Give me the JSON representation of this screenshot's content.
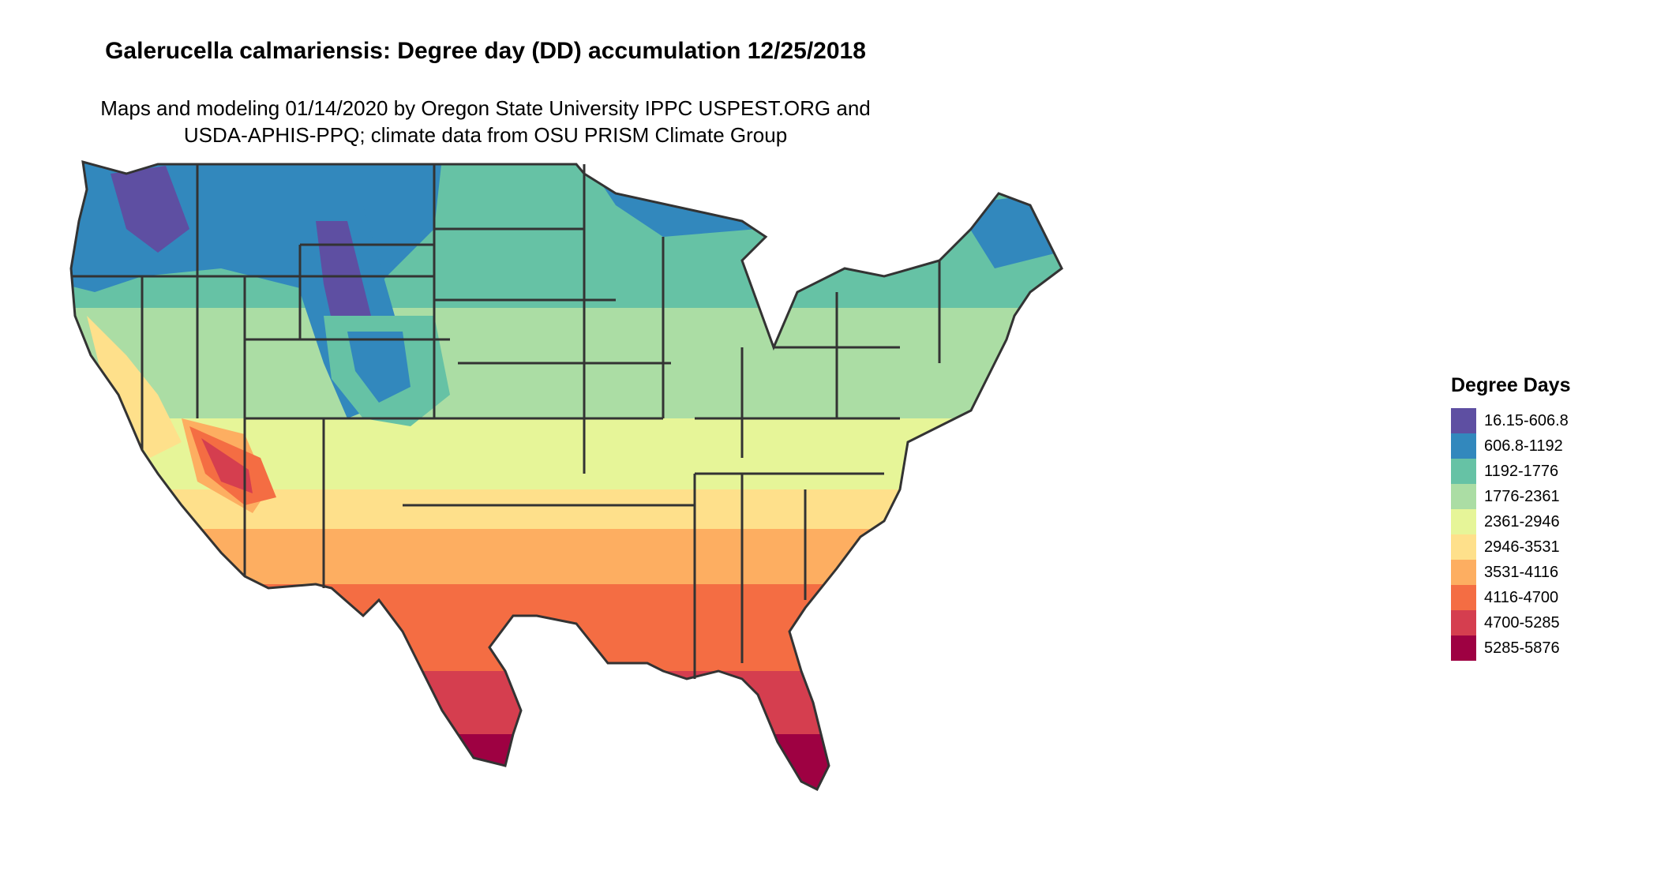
{
  "map": {
    "title": "Galerucella calmariensis: Degree day (DD) accumulation 12/25/2018",
    "subtitle_line1": "Maps and modeling 01/14/2020 by Oregon State University IPPC USPEST.ORG and",
    "subtitle_line2": "USDA-APHIS-PPQ; climate data from OSU PRISM Climate Group",
    "region": "Continental United States",
    "legend": {
      "title": "Degree Days",
      "items": [
        {
          "label": "16.15-606.8",
          "color": "#5E4FA2"
        },
        {
          "label": "606.8-1192",
          "color": "#3288BD"
        },
        {
          "label": "1192-1776",
          "color": "#66C2A5"
        },
        {
          "label": "1776-2361",
          "color": "#ABDDA4"
        },
        {
          "label": "2361-2946",
          "color": "#E6F598"
        },
        {
          "label": "2946-3531",
          "color": "#FEE08B"
        },
        {
          "label": "3531-4116",
          "color": "#FDAE61"
        },
        {
          "label": "4116-4700",
          "color": "#F46D43"
        },
        {
          "label": "4700-5285",
          "color": "#D53E4F"
        },
        {
          "label": "5285-5876",
          "color": "#9E0142"
        }
      ]
    }
  }
}
